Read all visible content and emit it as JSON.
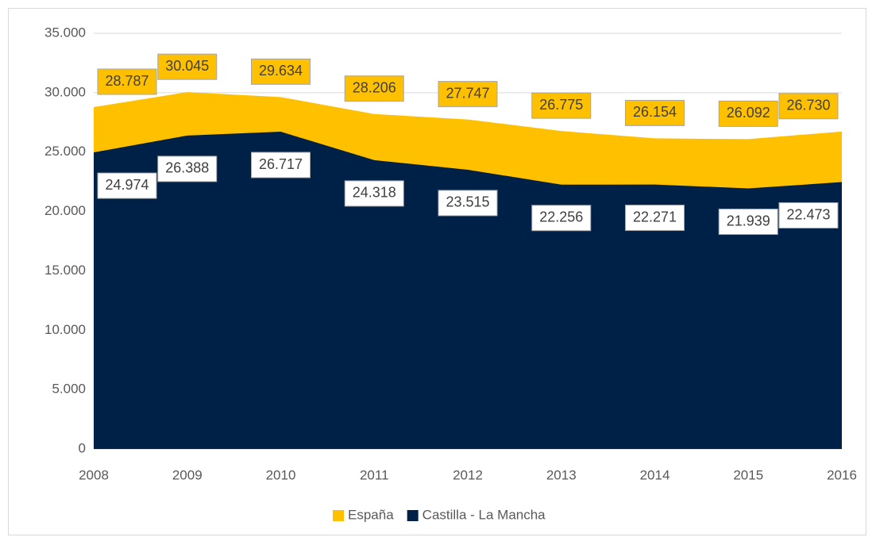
{
  "chart_data": {
    "type": "area",
    "categories": [
      "2008",
      "2009",
      "2010",
      "2011",
      "2012",
      "2013",
      "2014",
      "2015",
      "2016"
    ],
    "series": [
      {
        "name": "España",
        "color": "#ffc000",
        "values": [
          28787,
          30045,
          29634,
          28206,
          27747,
          26775,
          26154,
          26092,
          26730
        ],
        "value_labels": [
          "28.787",
          "30.045",
          "29.634",
          "28.206",
          "27.747",
          "26.775",
          "26.154",
          "26.092",
          "26.730"
        ]
      },
      {
        "name": "Castilla - La Mancha",
        "color": "#002147",
        "values": [
          24974,
          26388,
          26717,
          24318,
          23515,
          22256,
          22271,
          21939,
          22473
        ],
        "value_labels": [
          "24.974",
          "26.388",
          "26.717",
          "24.318",
          "23.515",
          "22.256",
          "22.271",
          "21.939",
          "22.473"
        ]
      }
    ],
    "ylim": [
      0,
      35000
    ],
    "yticks": [
      0,
      {
        "value": 5000,
        "label": "5.000"
      },
      {
        "value": 10000,
        "label": "10.000"
      },
      {
        "value": 15000,
        "label": "15.000"
      },
      {
        "value": 20000,
        "label": "20.000"
      },
      {
        "value": 25000,
        "label": "25.000"
      },
      {
        "value": 30000,
        "label": "30.000"
      },
      {
        "value": 35000,
        "label": "35.000"
      }
    ],
    "grid": true,
    "legend": "bottom"
  }
}
